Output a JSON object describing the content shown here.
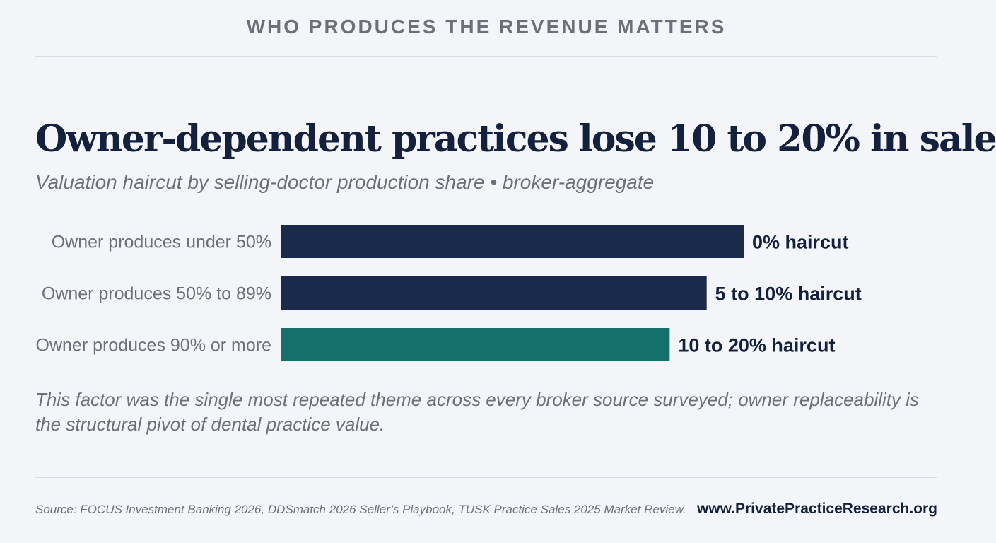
{
  "header": {
    "kicker": "WHO PRODUCES THE REVENUE MATTERS"
  },
  "chart_data": {
    "type": "bar",
    "orientation": "horizontal",
    "title": "Owner-dependent practices lose 10 to 20% in sale",
    "subtitle": "Valuation haircut by selling-doctor production share • broker-aggregate",
    "categories": [
      "Owner produces under 50%",
      "Owner produces 50% to 89%",
      "Owner produces 90% or more"
    ],
    "values": [
      100,
      92,
      84
    ],
    "data_labels": [
      "0% haircut",
      "5 to 10% haircut",
      "10 to 20% haircut"
    ],
    "colors": [
      "#1a2a4a",
      "#1a2a4a",
      "#13706b"
    ],
    "grid": false
  },
  "note": "This factor was the single most repeated theme across every broker source surveyed; owner replaceability is the structural pivot of dental practice value.",
  "footer": {
    "source": "Source: FOCUS Investment Banking 2026, DDSmatch 2026 Seller’s Playbook, TUSK Practice Sales 2025 Market Review.",
    "website": "www.PrivatePracticeResearch.org"
  }
}
